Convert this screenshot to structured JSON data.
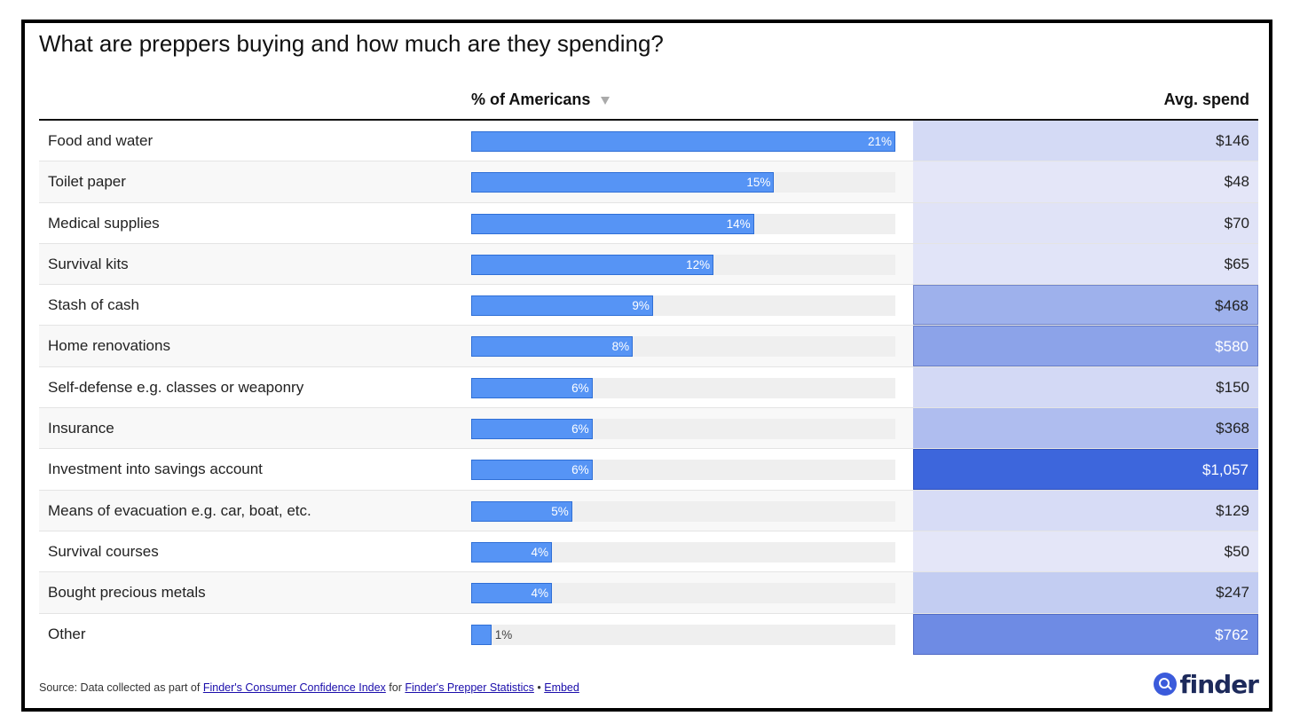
{
  "title": "What are preppers buying and how much are they spending?",
  "columns": {
    "pct": "% of Americans",
    "spend": "Avg. spend"
  },
  "colors": {
    "bar": "#5694f5",
    "bar_border": "#2f6fd6",
    "heat_low": "#e4e6f8",
    "heat_high": "#3d66dc"
  },
  "chart_data": {
    "type": "table",
    "categories": [
      "Food and water",
      "Toilet paper",
      "Medical supplies",
      "Survival kits",
      "Stash of cash",
      "Home renovations",
      "Self-defense e.g. classes or weaponry",
      "Insurance",
      "Investment into savings account",
      "Means of evacuation e.g. car, boat, etc.",
      "Survival courses",
      "Bought precious metals",
      "Other"
    ],
    "series": [
      {
        "name": "% of Americans",
        "values": [
          21,
          15,
          14,
          12,
          9,
          8,
          6,
          6,
          6,
          5,
          4,
          4,
          1
        ],
        "labels": [
          "21%",
          "15%",
          "14%",
          "12%",
          "9%",
          "8%",
          "6%",
          "6%",
          "6%",
          "5%",
          "4%",
          "4%",
          "1%"
        ]
      },
      {
        "name": "Avg. spend",
        "values": [
          146,
          48,
          70,
          65,
          468,
          580,
          150,
          368,
          1057,
          129,
          50,
          247,
          762
        ],
        "labels": [
          "$146",
          "$48",
          "$70",
          "$65",
          "$468",
          "$580",
          "$150",
          "$368",
          "$1,057",
          "$129",
          "$50",
          "$247",
          "$762"
        ]
      }
    ],
    "xlim": [
      0,
      21
    ],
    "sort": "descending by % of Americans"
  },
  "footer": {
    "source_prefix": "Source: Data collected as part of",
    "link1": "Finder's Consumer Confidence Index",
    "for_text": "for",
    "link2": "Finder's Prepper Statistics",
    "separator": "•",
    "link3": "Embed"
  },
  "logo": {
    "text": "finder",
    "icon": "magnifier-icon"
  }
}
